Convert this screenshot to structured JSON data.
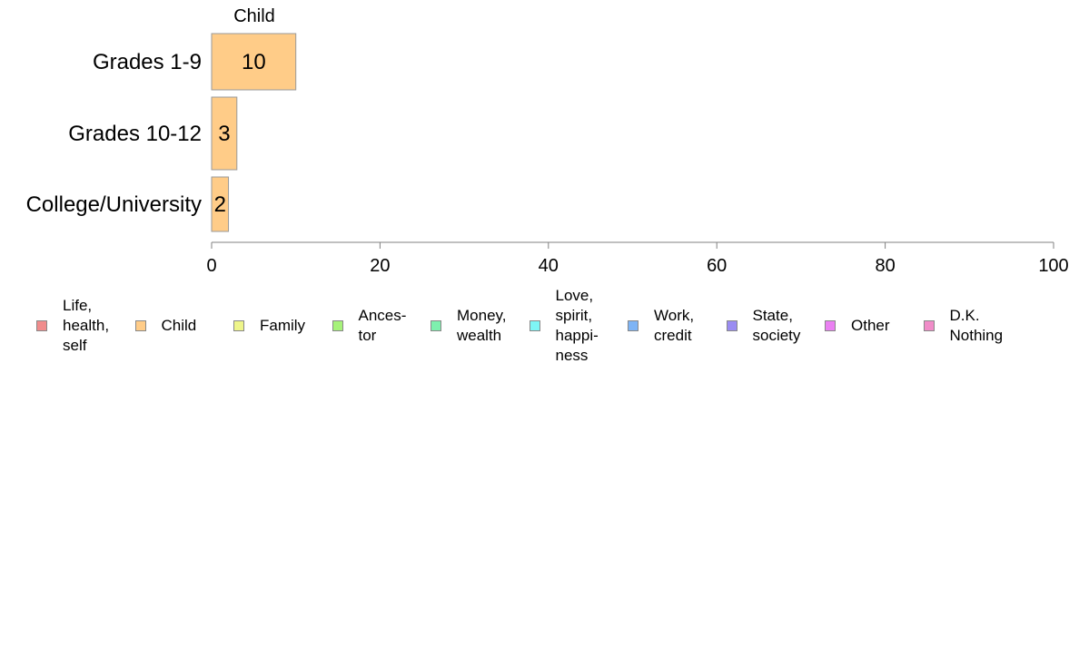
{
  "chart_data": {
    "type": "bar",
    "orientation": "horizontal",
    "panel_title": "Child",
    "categories": [
      "Grades 1-9",
      "Grades 10-12",
      "College/University"
    ],
    "series": [
      {
        "name": "Child",
        "values": [
          10,
          3,
          2
        ],
        "color": "#ffcc88"
      }
    ],
    "data_labels": [
      "10",
      "3",
      "2"
    ],
    "xlim": [
      0,
      100
    ],
    "xticks": [
      0,
      20,
      40,
      60,
      80,
      100
    ],
    "xtick_labels": [
      "0",
      "20",
      "40",
      "60",
      "80",
      "100"
    ],
    "grid": false,
    "legend_position": "bottom",
    "legend": [
      {
        "label": "Life,\nhealth,\nself",
        "color": "#f08c8c"
      },
      {
        "label": "Child",
        "color": "#ffcc88"
      },
      {
        "label": "Family",
        "color": "#eef58a"
      },
      {
        "label": "Ances-\ntor",
        "color": "#a6f27a"
      },
      {
        "label": "Money,\nwealth",
        "color": "#7ef0ae"
      },
      {
        "label": "Love,\nspirit,\nhappi-\nness",
        "color": "#7ef5f5"
      },
      {
        "label": "Work,\ncredit",
        "color": "#7eb4f5"
      },
      {
        "label": "State,\nsociety",
        "color": "#9a8cf2"
      },
      {
        "label": "Other",
        "color": "#ea80f2"
      },
      {
        "label": "D.K.\nNothing",
        "color": "#f08cc8"
      }
    ]
  }
}
